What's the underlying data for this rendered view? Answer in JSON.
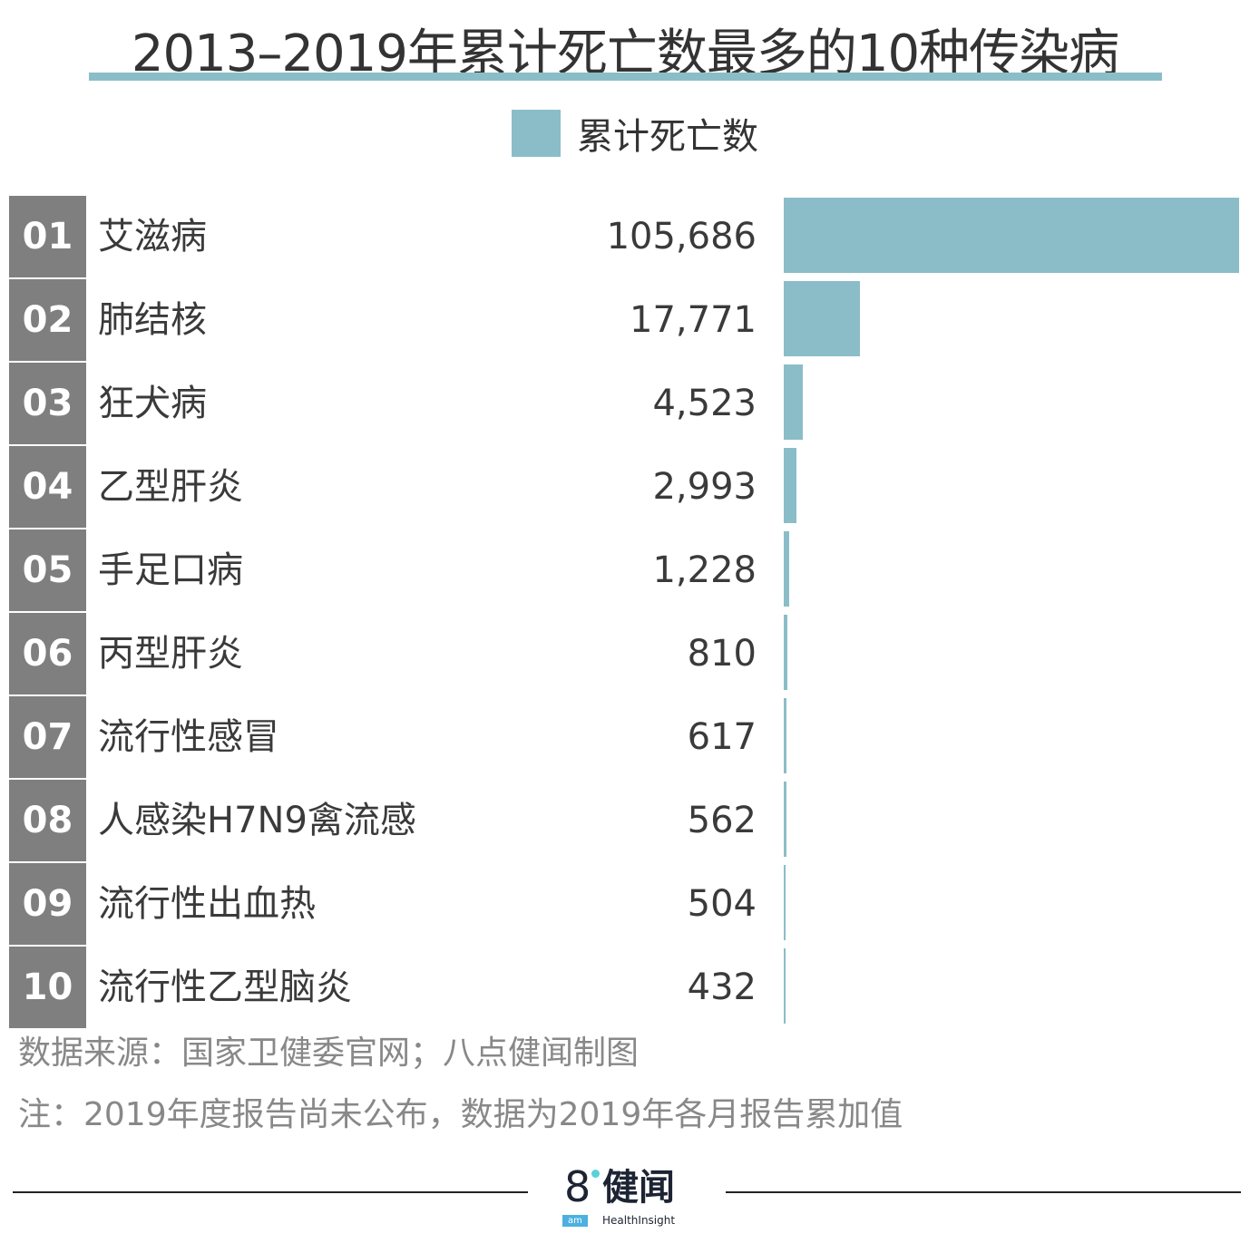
{
  "chart_data": {
    "type": "bar",
    "orientation": "horizontal",
    "title": "2013–2019年累计死亡数最多的10种传染病",
    "legend": [
      "累计死亡数"
    ],
    "legend_position": "top",
    "ranks": [
      "01",
      "02",
      "03",
      "04",
      "05",
      "06",
      "07",
      "08",
      "09",
      "10"
    ],
    "categories": [
      "艾滋病",
      "肺结核",
      "狂犬病",
      "乙型肝炎",
      "手足口病",
      "丙型肝炎",
      "流行性感冒",
      "人感染H7N9禽流感",
      "流行性出血热",
      "流行性乙型脑炎"
    ],
    "values": [
      105686,
      17771,
      4523,
      2993,
      1228,
      810,
      617,
      562,
      504,
      432
    ],
    "value_labels": [
      "105,686",
      "17,771",
      "4,523",
      "2,993",
      "1,228",
      "810",
      "617",
      "562",
      "504",
      "432"
    ],
    "bar_color": "#8bbdc8",
    "rank_color": "#7f7f7f"
  },
  "source": "数据来源：国家卫健委官网；八点健闻制图",
  "note": "注：2019年度报告尚未公布，数据为2019年各月报告累加值",
  "logo": {
    "text": "8健闻",
    "sub": "am",
    "brand": "HealthInsight"
  }
}
